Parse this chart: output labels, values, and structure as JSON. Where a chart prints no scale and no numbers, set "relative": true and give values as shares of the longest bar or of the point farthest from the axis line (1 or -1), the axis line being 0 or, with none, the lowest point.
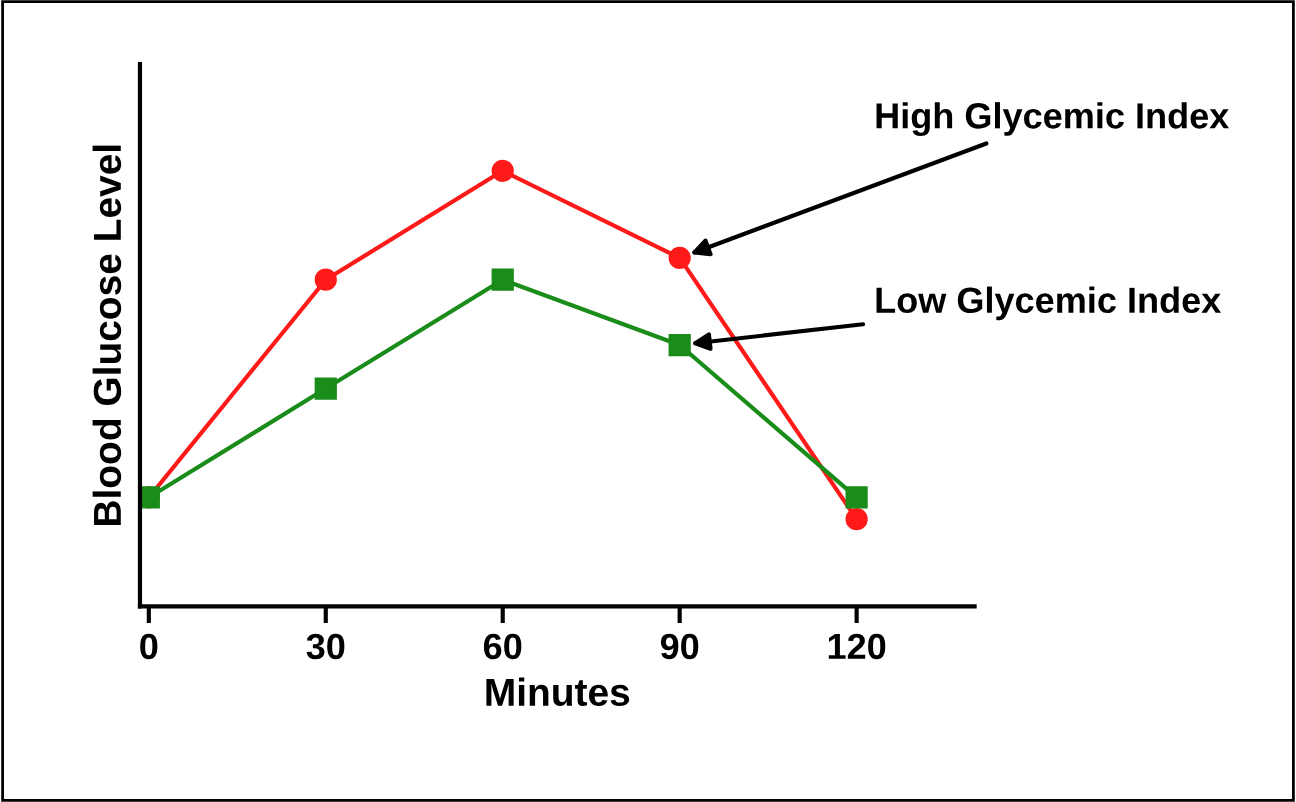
{
  "chart_data": {
    "type": "line",
    "relative": true,
    "xlabel": "Minutes",
    "ylabel": "Blood Glucose Level",
    "x": [
      0,
      30,
      60,
      90,
      120
    ],
    "xlim": [
      -1.5,
      140
    ],
    "xticks": [
      0,
      30,
      60,
      90,
      120
    ],
    "grid": false,
    "legend": false,
    "series": [
      {
        "color": "#ff1a1a",
        "marker": "circle",
        "values": [
          0.25,
          0.75,
          1,
          0.8,
          0.2
        ]
      },
      {
        "color": "#1a8c1a",
        "marker": "square",
        "values": [
          0.25,
          0.5,
          0.75,
          0.6,
          0.25
        ]
      }
    ],
    "annotations": [
      {
        "text": "High Glycemic Index",
        "x": 90,
        "y": 0.8
      },
      {
        "text": "Low Glycemic Index",
        "x": 90,
        "y": 0.6
      }
    ]
  }
}
